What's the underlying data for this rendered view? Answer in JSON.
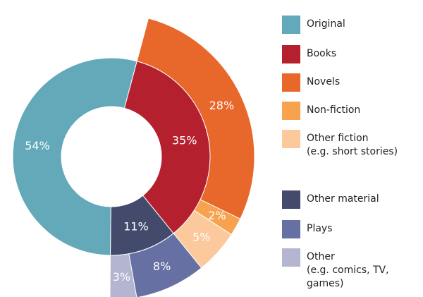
{
  "chart_data": {
    "type": "sunburst",
    "rings": [
      {
        "categories": [
          "Books",
          "Other material",
          "Original"
        ],
        "values": [
          35,
          11,
          54
        ],
        "value_labels": [
          "35%",
          "11%",
          "54%"
        ],
        "colors": [
          "#b5202e",
          "#434a6c",
          "#63a9b9"
        ]
      },
      {
        "categories": [
          "Novels",
          "Non-fiction",
          "Other fiction\n(e.g. short stories)",
          "Plays",
          "Other\n(e.g. comics, TV, games)"
        ],
        "values": [
          28,
          2,
          5,
          8,
          3
        ],
        "value_labels": [
          "28%",
          "2%",
          "5%",
          "8%",
          "3%"
        ],
        "colors": [
          "#e8672a",
          "#f6a24e",
          "#fbc99b",
          "#6670a3",
          "#b4b6d1"
        ]
      }
    ]
  }
}
